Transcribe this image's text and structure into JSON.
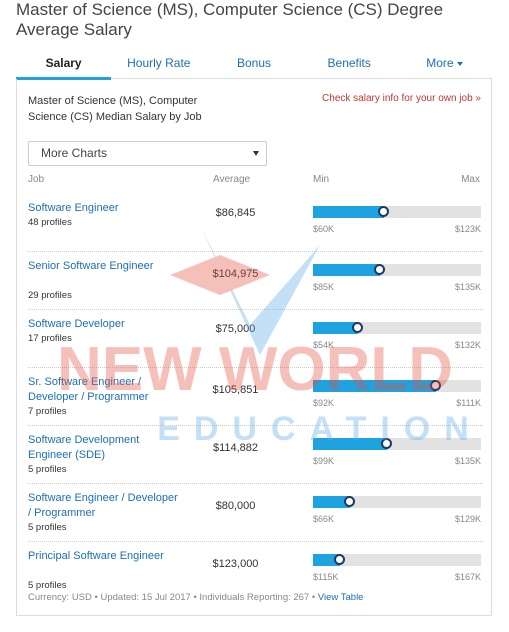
{
  "page": {
    "title": "Master of Science (MS), Computer Science (CS) Degree Average Salary"
  },
  "tabs": [
    {
      "label": "Salary",
      "active": true
    },
    {
      "label": "Hourly Rate",
      "active": false
    },
    {
      "label": "Bonus",
      "active": false
    },
    {
      "label": "Benefits",
      "active": false
    },
    {
      "label": "More",
      "active": false
    }
  ],
  "panel": {
    "heading": "Master of Science (MS), Computer Science (CS) Median Salary by Job",
    "link": "Check salary info for your own job »",
    "select_value": "More Charts",
    "col_job": "Job",
    "col_average": "Average",
    "col_min": "Min",
    "col_max": "Max"
  },
  "rows": [
    {
      "job": "Software Engineer",
      "profiles": "48 profiles",
      "average": "$86,845",
      "min": "$60K",
      "max": "$123K",
      "fill": 0.42
    },
    {
      "job": "Senior Software Engineer",
      "profiles": "29 profiles",
      "average": "$104,975",
      "min": "$85K",
      "max": "$135K",
      "fill": 0.4
    },
    {
      "job": "Software Developer",
      "profiles": "17 profiles",
      "average": "$75,000",
      "min": "$54K",
      "max": "$132K",
      "fill": 0.27
    },
    {
      "job": "Sr. Software Engineer / Developer / Programmer",
      "profiles": "7 profiles",
      "average": "$105,851",
      "min": "$92K",
      "max": "$111K",
      "fill": 0.73
    },
    {
      "job": "Software Development Engineer (SDE)",
      "profiles": "5 profiles",
      "average": "$114,882",
      "min": "$99K",
      "max": "$135K",
      "fill": 0.44
    },
    {
      "job": "Software Engineer / Developer / Programmer",
      "profiles": "5 profiles",
      "average": "$80,000",
      "min": "$66K",
      "max": "$129K",
      "fill": 0.22
    },
    {
      "job": "Principal Software Engineer",
      "profiles": "5 profiles",
      "average": "$123,000",
      "min": "$115K",
      "max": "$167K",
      "fill": 0.16
    }
  ],
  "footer": {
    "text": "Currency: USD • Updated: 15 Jul 2017 • Individuals Reporting: 267 •",
    "link": "View Table"
  },
  "watermark": {
    "line1": "NEW WORLD",
    "line2": "EDUCATION"
  },
  "colors": {
    "accent": "#1fa3e0",
    "link": "#1d6fb8",
    "cta": "#c0392b",
    "knob": "#1a3a63"
  }
}
